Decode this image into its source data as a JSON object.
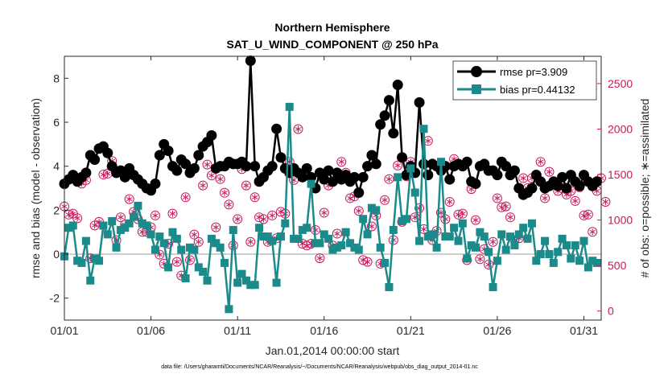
{
  "chart_data": {
    "type": "line",
    "title": "Northern Hemisphere",
    "subtitle": "SAT_U_WIND_COMPONENT @ 250 hPa",
    "xlabel": "Jan.01,2014 00:00:00 start",
    "ylabel_left": "rmse and bias (model - observation)",
    "ylabel_right": "# of obs: o=possible; ∗=assimilated",
    "footnote": "data file: /Users/gharamti/Documents/NCAR/Reanalysis/~/Documents/NCAR/Reanalysis/webpub/obs_diag_output_2014-01.nc",
    "xlim": [
      0,
      124
    ],
    "ylim_left": [
      -3,
      9
    ],
    "ylim_right": [
      -100,
      2800
    ],
    "x_tick_labels": [
      "01/01",
      "01/06",
      "01/11",
      "01/16",
      "01/21",
      "01/26",
      "01/31"
    ],
    "x_tick_values": [
      0,
      20,
      40,
      60,
      80,
      100,
      120
    ],
    "y_left_ticks": [
      -2,
      0,
      2,
      4,
      6,
      8
    ],
    "y_right_ticks": [
      0,
      500,
      1000,
      1500,
      2000,
      2500
    ],
    "colors": {
      "rmse": "#000000",
      "bias": "#1b8a8a",
      "obs": "#c8175d",
      "zero_line": "#bdbdbd"
    },
    "legend_position": "top-right",
    "series": [
      {
        "name": "rmse pr=3.909",
        "marker": "circle",
        "values": [
          3.2,
          3.4,
          3.6,
          3.3,
          3.5,
          3.7,
          4.5,
          4.3,
          4.8,
          4.9,
          4.6,
          4.0,
          3.7,
          3.8,
          3.5,
          3.9,
          3.6,
          3.4,
          3.2,
          3.0,
          2.9,
          3.2,
          4.5,
          5.0,
          4.7,
          4.0,
          3.8,
          4.3,
          4.1,
          3.7,
          3.9,
          4.5,
          4.9,
          5.1,
          5.4,
          3.9,
          4.0,
          4.0,
          4.2,
          4.1,
          4.1,
          4.2,
          4.0,
          8.8,
          4.0,
          3.3,
          3.5,
          3.8,
          4.0,
          5.7,
          4.4,
          3.9,
          3.7,
          3.9,
          3.7,
          3.5,
          3.9,
          3.5,
          3.0,
          3.7,
          3.4,
          3.8,
          3.3,
          3.7,
          3.4,
          3.6,
          3.3,
          3.5,
          2.8,
          3.5,
          4.0,
          4.5,
          4.1,
          5.9,
          6.3,
          7.0,
          5.5,
          7.7,
          4.4,
          3.6,
          4.0,
          3.7,
          6.9,
          4.1,
          3.6,
          4.1,
          4.0,
          3.8,
          4.0,
          3.4,
          4.0,
          4.1,
          4.0,
          4.2,
          3.3,
          3.2,
          4.0,
          4.1,
          3.8,
          3.8,
          3.6,
          4.2,
          4.0,
          3.6,
          3.8,
          3.0,
          2.7,
          2.8,
          3.0,
          3.6,
          3.3,
          3.0,
          3.1,
          3.3,
          3.1,
          3.5,
          3.0,
          3.6,
          3.3,
          3.1,
          3.6,
          3.3,
          3.1,
          3.3
        ]
      },
      {
        "name": "bias pr=0.44132",
        "marker": "square",
        "values": [
          -0.1,
          1.2,
          1.3,
          -0.3,
          -0.4,
          0.6,
          -1.2,
          -0.2,
          -0.3,
          1.3,
          0.9,
          1.5,
          0.3,
          1.1,
          1.2,
          1.4,
          1.7,
          2.2,
          1.4,
          1.3,
          0.9,
          0.2,
          0.8,
          0.5,
          -0.6,
          1.0,
          0.7,
          0.2,
          -1.1,
          0.3,
          0.2,
          -0.6,
          -0.8,
          -1.2,
          0.7,
          0.5,
          0.3,
          -0.4,
          -2.5,
          1.1,
          -1.3,
          -0.9,
          -1.2,
          -1.4,
          -1.4,
          1.2,
          0.8,
          0.8,
          0.6,
          -1.3,
          0.8,
          1.4,
          6.7,
          0.7,
          0.7,
          1.1,
          1.2,
          3.2,
          0.5,
          0.5,
          0.9,
          0.7,
          0.2,
          0.3,
          0.4,
          1.0,
          0.5,
          0.3,
          0.2,
          1.6,
          0.9,
          2.1,
          2.0,
          0.3,
          -0.4,
          -1.5,
          1.1,
          3.5,
          1.5,
          1.6,
          3.9,
          2.8,
          0.6,
          5.7,
          0.8,
          0.9,
          0.3,
          4.2,
          0.8,
          0.8,
          1.2,
          0.6,
          1.4,
          -0.2,
          0.4,
          0.3,
          1.0,
          0.8,
          0.1,
          -1.5,
          -0.3,
          0.9,
          0.2,
          0.8,
          0.4,
          0.9,
          1.2,
          0.7,
          1.4,
          -0.3,
          0.0,
          0.6,
          0.0,
          -0.4,
          0.1,
          0.7,
          0.4,
          -0.2,
          0.4,
          -0.3,
          0.6,
          -0.6,
          -0.3,
          -0.4
        ]
      },
      {
        "name": "obs possible/assimilated",
        "axis": "right",
        "marker": "circled-asterisk",
        "values": [
          1150,
          1060,
          1070,
          1020,
          1400,
          1440,
          580,
          940,
          980,
          1500,
          1510,
          1650,
          780,
          1030,
          950,
          1230,
          1090,
          1010,
          870,
          870,
          920,
          1050,
          620,
          520,
          740,
          1070,
          540,
          390,
          1250,
          560,
          840,
          760,
          1380,
          1610,
          1490,
          920,
          1450,
          1300,
          1170,
          720,
          1010,
          1560,
          1380,
          760,
          1250,
          1030,
          1010,
          760,
          1050,
          800,
          1090,
          1070,
          1640,
          1440,
          2000,
          740,
          720,
          740,
          890,
          580,
          1080,
          1380,
          720,
          850,
          1640,
          1520,
          1240,
          1260,
          1100,
          560,
          540,
          930,
          1050,
          520,
          1220,
          1450,
          780,
          1600,
          980,
          1480,
          1640,
          1030,
          1130,
          900,
          1870,
          780,
          880,
          1080,
          1010,
          1200,
          1670,
          1060,
          1070,
          560,
          1340,
          1000,
          570,
          680,
          510,
          760,
          1240,
          1140,
          1150,
          1030,
          780,
          800,
          1460,
          1350,
          1460,
          1500,
          1640,
          1240,
          1530,
          1400,
          1320,
          1350,
          1280,
          1320,
          1210,
          1360,
          1050,
          1060,
          870,
          1320,
          1460,
          1200
        ]
      }
    ]
  }
}
